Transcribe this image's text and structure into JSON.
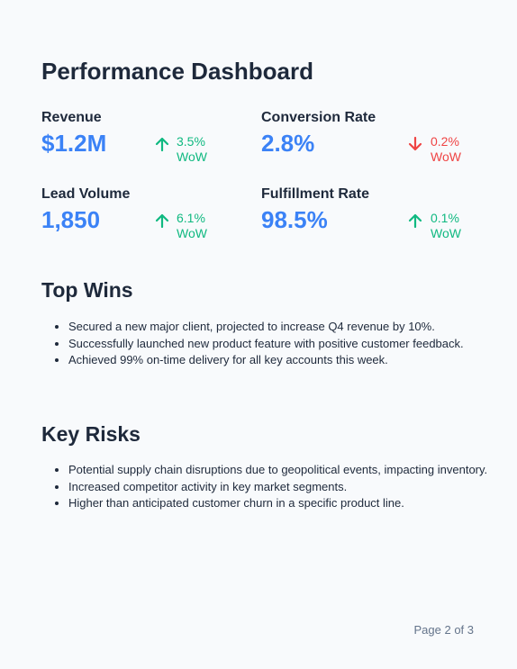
{
  "title": "Performance Dashboard",
  "colors": {
    "accent": "#3b82f6",
    "positive": "#10b981",
    "negative": "#ef4444",
    "text": "#1e293b",
    "muted": "#64748b",
    "background": "#f8fafc"
  },
  "metrics": [
    {
      "label": "Revenue",
      "value": "$1.2M",
      "change": "3.5%",
      "period": "WoW",
      "direction": "up",
      "icon": "arrow-up-icon"
    },
    {
      "label": "Conversion Rate",
      "value": "2.8%",
      "change": "0.2%",
      "period": "WoW",
      "direction": "down",
      "icon": "arrow-down-icon"
    },
    {
      "label": "Lead Volume",
      "value": "1,850",
      "change": "6.1%",
      "period": "WoW",
      "direction": "up",
      "icon": "arrow-up-icon"
    },
    {
      "label": "Fulfillment Rate",
      "value": "98.5%",
      "change": "0.1%",
      "period": "WoW",
      "direction": "up",
      "icon": "arrow-up-icon"
    }
  ],
  "wins": {
    "title": "Top Wins",
    "items": [
      "Secured a new major client, projected to increase Q4 revenue by 10%.",
      "Successfully launched new product feature with positive customer feedback.",
      "Achieved 99% on-time delivery for all key accounts this week."
    ]
  },
  "risks": {
    "title": "Key Risks",
    "items": [
      "Potential supply chain disruptions due to geopolitical events, impacting inventory.",
      "Increased competitor activity in key market segments.",
      "Higher than anticipated customer churn in a specific product line."
    ]
  },
  "footer": {
    "page": "Page 2 of 3"
  }
}
